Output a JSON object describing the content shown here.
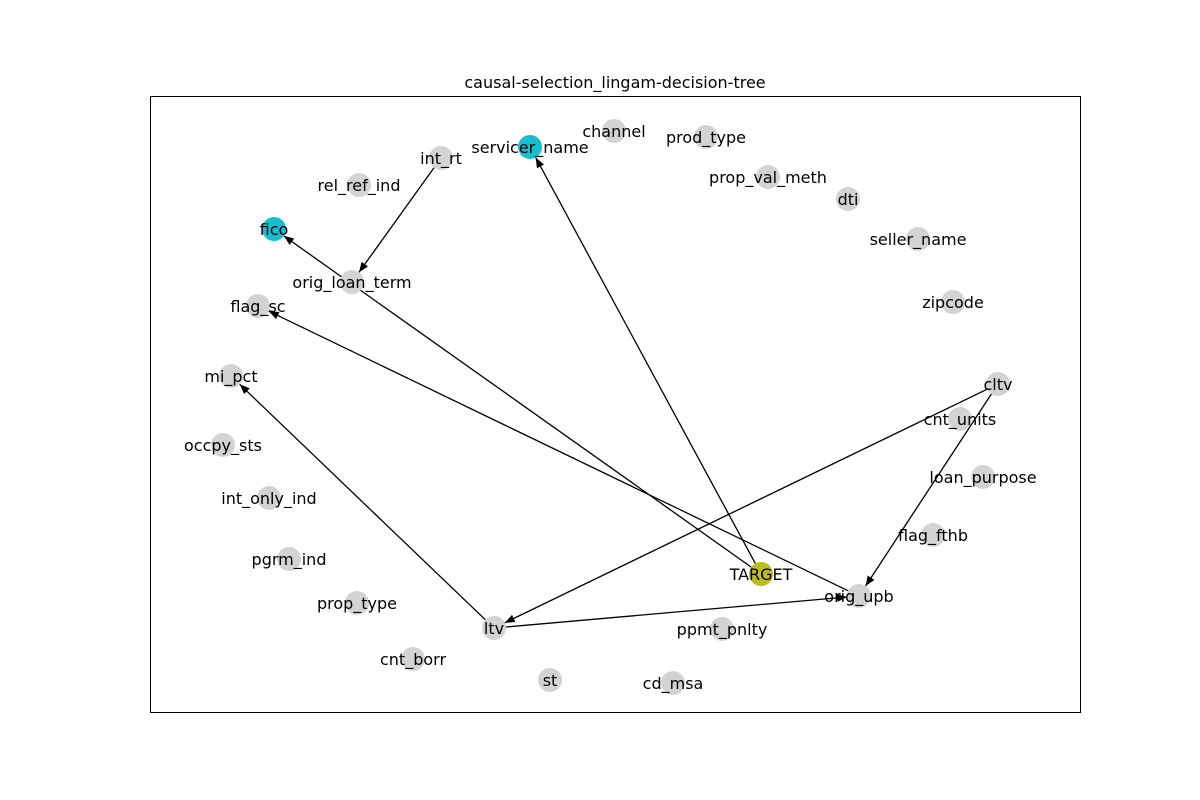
{
  "title": "causal-selection_lingam-decision-tree",
  "colors": {
    "default_node": "#d3d3d3",
    "selected_node": "#17becf",
    "target_node": "#bcbd22",
    "edge": "#000000",
    "frame": "#000000"
  },
  "nodes": [
    {
      "id": "servicer_name",
      "label": "servicer_name",
      "color": "#17becf"
    },
    {
      "id": "channel",
      "label": "channel",
      "color": "#d3d3d3"
    },
    {
      "id": "prod_type",
      "label": "prod_type",
      "color": "#d3d3d3"
    },
    {
      "id": "int_rt",
      "label": "int_rt",
      "color": "#d3d3d3"
    },
    {
      "id": "prop_val_meth",
      "label": "prop_val_meth",
      "color": "#d3d3d3"
    },
    {
      "id": "rel_ref_ind",
      "label": "rel_ref_ind",
      "color": "#d3d3d3"
    },
    {
      "id": "dti",
      "label": "dti",
      "color": "#d3d3d3"
    },
    {
      "id": "fico",
      "label": "fico",
      "color": "#17becf"
    },
    {
      "id": "seller_name",
      "label": "seller_name",
      "color": "#d3d3d3"
    },
    {
      "id": "orig_loan_term",
      "label": "orig_loan_term",
      "color": "#d3d3d3"
    },
    {
      "id": "flag_sc",
      "label": "flag_sc",
      "color": "#d3d3d3"
    },
    {
      "id": "zipcode",
      "label": "zipcode",
      "color": "#d3d3d3"
    },
    {
      "id": "mi_pct",
      "label": "mi_pct",
      "color": "#d3d3d3"
    },
    {
      "id": "cltv",
      "label": "cltv",
      "color": "#d3d3d3"
    },
    {
      "id": "cnt_units",
      "label": "cnt_units",
      "color": "#d3d3d3"
    },
    {
      "id": "occpy_sts",
      "label": "occpy_sts",
      "color": "#d3d3d3"
    },
    {
      "id": "loan_purpose",
      "label": "loan_purpose",
      "color": "#d3d3d3"
    },
    {
      "id": "int_only_ind",
      "label": "int_only_ind",
      "color": "#d3d3d3"
    },
    {
      "id": "flag_fthb",
      "label": "flag_fthb",
      "color": "#d3d3d3"
    },
    {
      "id": "pgrm_ind",
      "label": "pgrm_ind",
      "color": "#d3d3d3"
    },
    {
      "id": "TARGET",
      "label": "TARGET",
      "color": "#bcbd22"
    },
    {
      "id": "orig_upb",
      "label": "orig_upb",
      "color": "#d3d3d3"
    },
    {
      "id": "prop_type",
      "label": "prop_type",
      "color": "#d3d3d3"
    },
    {
      "id": "ltv",
      "label": "ltv",
      "color": "#d3d3d3"
    },
    {
      "id": "ppmt_pnlty",
      "label": "ppmt_pnlty",
      "color": "#d3d3d3"
    },
    {
      "id": "cnt_borr",
      "label": "cnt_borr",
      "color": "#d3d3d3"
    },
    {
      "id": "st",
      "label": "st",
      "color": "#d3d3d3"
    },
    {
      "id": "cd_msa",
      "label": "cd_msa",
      "color": "#d3d3d3"
    }
  ],
  "edges": [
    {
      "source": "int_rt",
      "target": "orig_loan_term"
    },
    {
      "source": "TARGET",
      "target": "servicer_name"
    },
    {
      "source": "TARGET",
      "target": "fico"
    },
    {
      "source": "orig_upb",
      "target": "flag_sc"
    },
    {
      "source": "ltv",
      "target": "mi_pct"
    },
    {
      "source": "ltv",
      "target": "orig_upb"
    },
    {
      "source": "cltv",
      "target": "ltv"
    },
    {
      "source": "cltv",
      "target": "orig_upb"
    }
  ]
}
